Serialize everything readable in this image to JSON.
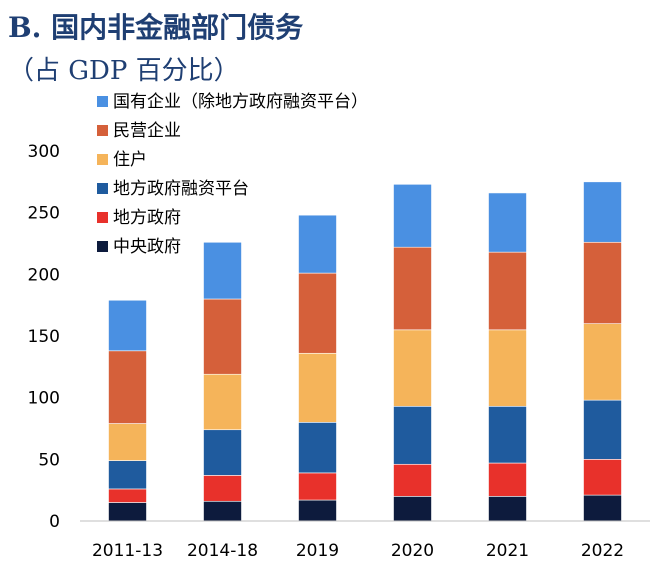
{
  "header": {
    "title": "B. 国内非金融部门债务",
    "subtitle": "（占 GDP 百分比）"
  },
  "chart_data": {
    "type": "bar",
    "stacked": true,
    "categories": [
      "2011-13",
      "2014-18",
      "2019",
      "2020",
      "2021",
      "2022"
    ],
    "ylim": [
      0,
      300
    ],
    "yticks": [
      0,
      50,
      100,
      150,
      200,
      250,
      300
    ],
    "grid": false,
    "legend_position": "top-left",
    "series": [
      {
        "name": "中央政府",
        "color": "#0d1b3d",
        "values": [
          15,
          16,
          17,
          20,
          20,
          21
        ]
      },
      {
        "name": "地方政府",
        "color": "#e8312b",
        "values": [
          11,
          21,
          22,
          26,
          27,
          29
        ]
      },
      {
        "name": "地方政府融资平台",
        "color": "#1f5b9e",
        "values": [
          23,
          37,
          41,
          47,
          46,
          48
        ]
      },
      {
        "name": "住户",
        "color": "#f5b45a",
        "values": [
          30,
          45,
          56,
          62,
          62,
          62
        ]
      },
      {
        "name": "民营企业",
        "color": "#d5603a",
        "values": [
          59,
          61,
          65,
          67,
          63,
          66
        ]
      },
      {
        "name": "国有企业（除地方政府融资平台）",
        "color": "#4a90e2",
        "values": [
          41,
          46,
          47,
          51,
          48,
          49
        ]
      }
    ]
  }
}
